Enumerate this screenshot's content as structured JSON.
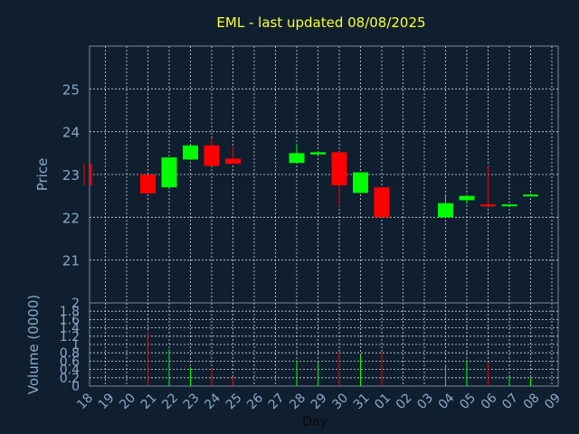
{
  "chart_data": [
    {
      "type": "candlestick",
      "title": "EML - last updated 08/08/2025",
      "ylabel": "Price",
      "ylim": [
        20,
        26
      ],
      "yticks": [
        21,
        22,
        23,
        24,
        25
      ],
      "grid": true,
      "up_color": "#00ff00",
      "down_color": "#ff0000",
      "x": [
        "18",
        "19",
        "20",
        "21",
        "22",
        "23",
        "24",
        "25",
        "26",
        "27",
        "28",
        "29",
        "30",
        "31",
        "01",
        "02",
        "03",
        "04",
        "05",
        "06",
        "07",
        "08",
        "09"
      ],
      "candles": [
        {
          "day": "18",
          "open": 23.25,
          "high": 23.25,
          "low": 22.75,
          "close": 22.75
        },
        {
          "day": "21",
          "open": 23.0,
          "high": 23.0,
          "low": 22.56,
          "close": 22.56
        },
        {
          "day": "22",
          "open": 22.7,
          "high": 23.4,
          "low": 22.7,
          "close": 23.4
        },
        {
          "day": "23",
          "open": 23.35,
          "high": 23.7,
          "low": 23.35,
          "close": 23.68
        },
        {
          "day": "24",
          "open": 23.68,
          "high": 23.85,
          "low": 23.2,
          "close": 23.2
        },
        {
          "day": "25",
          "open": 23.37,
          "high": 23.65,
          "low": 23.25,
          "close": 23.25
        },
        {
          "day": "28",
          "open": 23.27,
          "high": 23.72,
          "low": 23.27,
          "close": 23.5
        },
        {
          "day": "29",
          "open": 23.47,
          "high": 23.55,
          "low": 23.45,
          "close": 23.52
        },
        {
          "day": "30",
          "open": 23.52,
          "high": 23.52,
          "low": 22.25,
          "close": 22.75
        },
        {
          "day": "31",
          "open": 22.57,
          "high": 23.05,
          "low": 22.57,
          "close": 23.05
        },
        {
          "day": "01",
          "open": 22.7,
          "high": 22.7,
          "low": 22.0,
          "close": 22.0
        },
        {
          "day": "04",
          "open": 22.0,
          "high": 22.5,
          "low": 22.0,
          "close": 22.33
        },
        {
          "day": "05",
          "open": 22.4,
          "high": 22.52,
          "low": 22.3,
          "close": 22.5
        },
        {
          "day": "06",
          "open": 22.3,
          "high": 23.2,
          "low": 22.25,
          "close": 22.28
        },
        {
          "day": "07",
          "open": 22.28,
          "high": 22.3,
          "low": 22.27,
          "close": 22.3
        },
        {
          "day": "08",
          "open": 22.5,
          "high": 22.55,
          "low": 22.5,
          "close": 22.53
        }
      ]
    },
    {
      "type": "bar",
      "ylabel": "Volume (0000)",
      "xlabel": "Day",
      "ylim": [
        0,
        2
      ],
      "yticks": [
        "0",
        "0.2",
        "0.4",
        "0.6",
        "0.8",
        "1",
        "1.2",
        "1.4",
        "1.6",
        "1.8",
        "2"
      ],
      "grid": true,
      "x": [
        "18",
        "19",
        "20",
        "21",
        "22",
        "23",
        "24",
        "25",
        "26",
        "27",
        "28",
        "29",
        "30",
        "31",
        "01",
        "02",
        "03",
        "04",
        "05",
        "06",
        "07",
        "08",
        "09"
      ],
      "bars": [
        {
          "day": "21",
          "value": 1.3,
          "color": "#ff0000"
        },
        {
          "day": "22",
          "value": 0.88,
          "color": "#00ff00"
        },
        {
          "day": "23",
          "value": 0.45,
          "color": "#00ff00"
        },
        {
          "day": "24",
          "value": 0.42,
          "color": "#ff0000"
        },
        {
          "day": "25",
          "value": 0.22,
          "color": "#ff0000"
        },
        {
          "day": "28",
          "value": 0.62,
          "color": "#00ff00"
        },
        {
          "day": "29",
          "value": 0.58,
          "color": "#00ff00"
        },
        {
          "day": "30",
          "value": 0.82,
          "color": "#ff0000"
        },
        {
          "day": "31",
          "value": 0.75,
          "color": "#00ff00"
        },
        {
          "day": "01",
          "value": 0.8,
          "color": "#ff0000"
        },
        {
          "day": "04",
          "value": 0.52,
          "color": "#00ff00"
        },
        {
          "day": "05",
          "value": 0.62,
          "color": "#00ff00"
        },
        {
          "day": "06",
          "value": 0.55,
          "color": "#ff0000"
        },
        {
          "day": "07",
          "value": 0.22,
          "color": "#00ff00"
        },
        {
          "day": "08",
          "value": 0.2,
          "color": "#00ff00"
        }
      ]
    }
  ]
}
